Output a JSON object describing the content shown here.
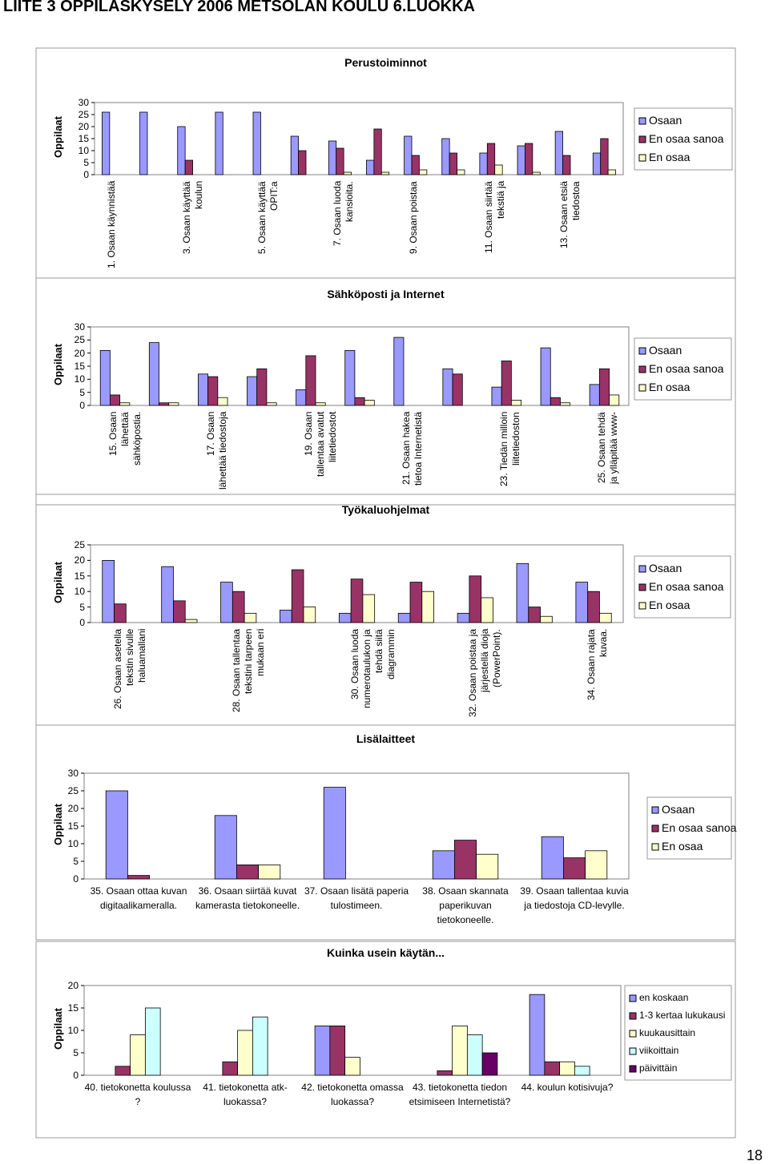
{
  "title": "LIITE 3 OPPILASKYSELY 2006 METSOLAN KOULU 6.LUOKKA",
  "page_number": 18,
  "chart_data": [
    {
      "type": "bar",
      "title": "Perustoiminnot",
      "y_label": "Oppilaat",
      "legend": "right",
      "label_style": "rotated",
      "categories": [
        "1. Osaan käynnistää",
        null,
        "3. Osaan käyttää koulun",
        null,
        "5. Osaan käyttää OPIT:a",
        null,
        "7. Osaan luoda kansioita.",
        null,
        "9. Osaan poistaa",
        null,
        "11. Osaan siirtää tekstiä ja",
        null,
        "13. Osaan etsiä tiedostoa",
        null
      ],
      "series": [
        {
          "name": "Osaan",
          "color": "#9999ff",
          "values": [
            26,
            26,
            20,
            26,
            26,
            16,
            14,
            6,
            16,
            15,
            9,
            12,
            18,
            9
          ]
        },
        {
          "name": "En osaa sanoa",
          "color": "#993366",
          "values": [
            0,
            0,
            6,
            0,
            0,
            10,
            11,
            19,
            8,
            9,
            13,
            13,
            8,
            15
          ]
        },
        {
          "name": "En osaa",
          "color": "#ffffcc",
          "values": [
            0,
            0,
            0,
            0,
            0,
            0,
            1,
            1,
            2,
            2,
            4,
            1,
            0,
            2
          ]
        }
      ],
      "ylim": [
        0,
        30
      ],
      "yticks": [
        0,
        5,
        10,
        15,
        20,
        25,
        30
      ]
    },
    {
      "type": "bar",
      "title": "Sähköposti ja Internet",
      "y_label": "Oppilaat",
      "legend": "right",
      "label_style": "rotated",
      "categories": [
        "15. Osaan lähettää sähköpostia.",
        null,
        "17. Osaan lähettää tiedostoja",
        null,
        "19. Osaan tallentaa avatut liitetiedostot",
        null,
        "21. Osaan hakea tietoa Internetistä",
        null,
        "23. Tiedän milloin liitetiedoston",
        null,
        "25. Osaan tehdä ja ylläpitää www-"
      ],
      "series": [
        {
          "name": "Osaan",
          "color": "#9999ff",
          "values": [
            21,
            24,
            12,
            11,
            6,
            21,
            26,
            14,
            7,
            22,
            8
          ]
        },
        {
          "name": "En osaa sanoa",
          "color": "#993366",
          "values": [
            4,
            1,
            11,
            14,
            19,
            3,
            0,
            12,
            17,
            3,
            14
          ]
        },
        {
          "name": "En osaa",
          "color": "#ffffcc",
          "values": [
            1,
            1,
            3,
            1,
            1,
            2,
            0,
            0,
            2,
            1,
            4
          ]
        }
      ],
      "ylim": [
        0,
        30
      ],
      "yticks": [
        0,
        5,
        10,
        15,
        20,
        25,
        30
      ]
    },
    {
      "type": "bar",
      "title": "Työkaluohjelmat",
      "y_label": "Oppilaat",
      "legend": "right",
      "label_style": "rotated",
      "categories": [
        "26. Osaan asetella tekstin sivulle haluamallani",
        null,
        "28. Osaan tallentaa tekstini tarpeen mukaan eri",
        null,
        "30. Osaan luoda numerotaulukon ja tehdä siitä diagrammin",
        null,
        "32. Osaan poistaa ja järjestellä dioja (PowerPoint).",
        null,
        "34. Osaan rajata kuvaa."
      ],
      "series": [
        {
          "name": "Osaan",
          "color": "#9999ff",
          "values": [
            20,
            18,
            13,
            4,
            3,
            3,
            3,
            19,
            13
          ]
        },
        {
          "name": "En osaa sanoa",
          "color": "#993366",
          "values": [
            6,
            7,
            10,
            17,
            14,
            13,
            15,
            5,
            10
          ]
        },
        {
          "name": "En osaa",
          "color": "#ffffcc",
          "values": [
            0,
            1,
            3,
            5,
            9,
            10,
            8,
            2,
            3
          ]
        }
      ],
      "ylim": [
        0,
        25
      ],
      "yticks": [
        0,
        5,
        10,
        15,
        20,
        25
      ]
    },
    {
      "type": "bar",
      "title": "Lisälaitteet",
      "y_label": "Oppilaat",
      "legend": "right",
      "label_style": "horizontal",
      "categories": [
        "35. Osaan ottaa kuvan digitaalikameralla.",
        "36. Osaan siirtää kuvat kamerasta tietokoneelle.",
        "37. Osaan lisätä paperia tulostimeen.",
        "38. Osaan skannata paperikuvan tietokoneelle.",
        "39. Osaan tallentaa kuvia ja tiedostoja CD-levylle."
      ],
      "series": [
        {
          "name": "Osaan",
          "color": "#9999ff",
          "values": [
            25,
            18,
            26,
            8,
            12
          ]
        },
        {
          "name": "En osaa sanoa",
          "color": "#993366",
          "values": [
            1,
            4,
            0,
            11,
            6
          ]
        },
        {
          "name": "En osaa",
          "color": "#ffffcc",
          "values": [
            0,
            4,
            0,
            7,
            8
          ]
        }
      ],
      "ylim": [
        0,
        30
      ],
      "yticks": [
        0,
        5,
        10,
        15,
        20,
        25,
        30
      ]
    },
    {
      "type": "bar",
      "title": "Kuinka usein käytän...",
      "y_label": "Oppilaat",
      "legend": "right",
      "label_style": "horizontal",
      "categories": [
        "40. tietokonetta koulussa ?",
        "41. tietokonetta atk-luokassa?",
        "42. tietokonetta omassa luokassa?",
        "43. tietokonetta tiedon etsimiseen Internetistä?",
        "44. koulun kotisivuja?"
      ],
      "series": [
        {
          "name": "en koskaan",
          "color": "#9999ff",
          "values": [
            0,
            0,
            11,
            0,
            18
          ]
        },
        {
          "name": "1-3 kertaa lukukausi",
          "color": "#993366",
          "values": [
            2,
            3,
            11,
            1,
            3
          ]
        },
        {
          "name": "kuukausittain",
          "color": "#ffffcc",
          "values": [
            9,
            10,
            4,
            11,
            3
          ]
        },
        {
          "name": "viikoittain",
          "color": "#ccffff",
          "values": [
            15,
            13,
            0,
            9,
            2
          ]
        },
        {
          "name": "päivittäin",
          "color": "#660066",
          "values": [
            0,
            0,
            0,
            5,
            0
          ]
        }
      ],
      "ylim": [
        0,
        20
      ],
      "yticks": [
        0,
        5,
        10,
        15,
        20
      ]
    }
  ]
}
